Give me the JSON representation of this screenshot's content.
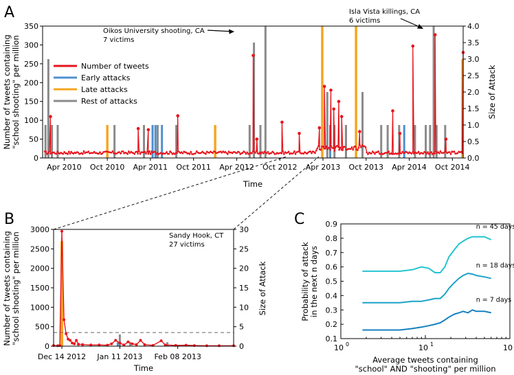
{
  "chart_data": [
    {
      "panel": "A",
      "type": "line",
      "xlabel": "Time",
      "ylabel_left": [
        "Number of tweets containing",
        "\"school shooting\" per million"
      ],
      "ylabel_right": "Size of Attack",
      "ylim_left": [
        0,
        350
      ],
      "ylim_right": [
        0,
        4.0
      ],
      "yticks_left": [
        "0",
        "50",
        "100",
        "150",
        "200",
        "250",
        "300",
        "350"
      ],
      "yticks_right": [
        "0.0",
        "0.5",
        "1.0",
        "1.5",
        "2.0",
        "2.5",
        "3.0",
        "3.5",
        "4.0"
      ],
      "x_ticks": [
        "Apr 2010",
        "Oct 2010",
        "Apr 2011",
        "Oct 2011",
        "Apr 2012",
        "Oct 2012",
        "Apr 2013",
        "Oct 2013",
        "Apr 2014",
        "Oct 2014"
      ],
      "x_range_months": [
        -3,
        55.5
      ],
      "legend": [
        "Number of tweets",
        "Early attacks",
        "Late attacks",
        "Rest of attacks"
      ],
      "colors": {
        "tweets": "#e8141c",
        "early": "#4f8fd0",
        "late": "#f5a623",
        "rest": "#8a8a8a"
      },
      "annotations": [
        {
          "lines": [
            "Oikos University shooting, CA",
            "7 victims"
          ]
        },
        {
          "lines": [
            "Isla Vista killings, CA",
            "6 victims"
          ]
        }
      ],
      "tweet_spikes": [
        {
          "month": -1.9,
          "value": 110
        },
        {
          "month": 10.3,
          "value": 78
        },
        {
          "month": 11.7,
          "value": 75
        },
        {
          "month": 15.8,
          "value": 112
        },
        {
          "month": 26.3,
          "value": 272
        },
        {
          "month": 26.8,
          "value": 50
        },
        {
          "month": 30.3,
          "value": 95
        },
        {
          "month": 32.7,
          "value": 65
        },
        {
          "month": 35.5,
          "value": 80
        },
        {
          "month": 36.2,
          "value": 190
        },
        {
          "month": 37.1,
          "value": 180
        },
        {
          "month": 37.5,
          "value": 130
        },
        {
          "month": 38.2,
          "value": 150
        },
        {
          "month": 38.6,
          "value": 110
        },
        {
          "month": 41.1,
          "value": 70
        },
        {
          "month": 45.7,
          "value": 125
        },
        {
          "month": 46.7,
          "value": 65
        },
        {
          "month": 48.5,
          "value": 297
        },
        {
          "month": 51.6,
          "value": 327
        },
        {
          "month": 53.1,
          "value": 50
        },
        {
          "month": 55.5,
          "value": 280
        }
      ],
      "attacks": [
        {
          "month": -2.6,
          "size": 1.0,
          "kind": "rest"
        },
        {
          "month": -2.2,
          "size": 3.0,
          "kind": "rest"
        },
        {
          "month": -1.7,
          "size": 1.0,
          "kind": "rest"
        },
        {
          "month": -0.9,
          "size": 1.0,
          "kind": "rest"
        },
        {
          "month": 6.0,
          "size": 1.0,
          "kind": "late"
        },
        {
          "month": 7.0,
          "size": 1.0,
          "kind": "rest"
        },
        {
          "month": 11.1,
          "size": 1.0,
          "kind": "rest"
        },
        {
          "month": 12.3,
          "size": 1.0,
          "kind": "early"
        },
        {
          "month": 12.7,
          "size": 1.0,
          "kind": "early"
        },
        {
          "month": 13.0,
          "size": 1.0,
          "kind": "rest"
        },
        {
          "month": 13.6,
          "size": 1.0,
          "kind": "early"
        },
        {
          "month": 15.6,
          "size": 1.0,
          "kind": "rest"
        },
        {
          "month": 21.0,
          "size": 1.0,
          "kind": "late"
        },
        {
          "month": 25.8,
          "size": 1.0,
          "kind": "rest"
        },
        {
          "month": 26.4,
          "size": 3.5,
          "kind": "rest"
        },
        {
          "month": 27.3,
          "size": 1.0,
          "kind": "rest"
        },
        {
          "month": 28.0,
          "size": 4.0,
          "kind": "rest"
        },
        {
          "month": 35.9,
          "size": 4.0,
          "kind": "late"
        },
        {
          "month": 36.6,
          "size": 2.0,
          "kind": "rest"
        },
        {
          "month": 37.0,
          "size": 1.0,
          "kind": "early"
        },
        {
          "month": 37.6,
          "size": 1.0,
          "kind": "rest"
        },
        {
          "month": 39.2,
          "size": 1.0,
          "kind": "rest"
        },
        {
          "month": 40.6,
          "size": 4.0,
          "kind": "late"
        },
        {
          "month": 41.5,
          "size": 2.0,
          "kind": "rest"
        },
        {
          "month": 44.1,
          "size": 1.0,
          "kind": "rest"
        },
        {
          "month": 45.0,
          "size": 1.0,
          "kind": "rest"
        },
        {
          "month": 46.6,
          "size": 1.0,
          "kind": "rest"
        },
        {
          "month": 47.3,
          "size": 1.0,
          "kind": "early"
        },
        {
          "month": 48.8,
          "size": 1.0,
          "kind": "rest"
        },
        {
          "month": 50.3,
          "size": 1.0,
          "kind": "rest"
        },
        {
          "month": 50.9,
          "size": 1.0,
          "kind": "rest"
        },
        {
          "month": 51.4,
          "size": 4.0,
          "kind": "rest"
        },
        {
          "month": 51.8,
          "size": 1.0,
          "kind": "rest"
        },
        {
          "month": 53.0,
          "size": 1.0,
          "kind": "rest"
        },
        {
          "month": 55.4,
          "size": 3.0,
          "kind": "late"
        }
      ]
    },
    {
      "panel": "B",
      "type": "line",
      "xlabel": "Time",
      "ylabel_left": [
        "Number of tweets containing",
        "\"school shooting\" per million"
      ],
      "ylabel_right": "Size of Attack",
      "ylim_left": [
        0,
        3000
      ],
      "ylim_right": [
        0,
        30
      ],
      "yticks_left": [
        "0",
        "500",
        "1000",
        "1500",
        "2000",
        "2500",
        "3000"
      ],
      "yticks_right": [
        "0",
        "5",
        "10",
        "15",
        "20",
        "25",
        "30"
      ],
      "x_ticks": [
        {
          "label": "Dec 14 2012",
          "day": 0
        },
        {
          "label": "Jan 11 2013",
          "day": 28
        },
        {
          "label": "Feb 08 2013",
          "day": 56
        }
      ],
      "x_range_days": [
        -4,
        83
      ],
      "threshold_line": 350,
      "annotation": [
        "Sandy Hook, CT",
        "27 victims"
      ],
      "tweets": [
        {
          "day": -4,
          "value": 15
        },
        {
          "day": -2,
          "value": 10
        },
        {
          "day": -1,
          "value": 15
        },
        {
          "day": 0,
          "value": 2950
        },
        {
          "day": 1,
          "value": 680
        },
        {
          "day": 2,
          "value": 320
        },
        {
          "day": 3,
          "value": 180
        },
        {
          "day": 4,
          "value": 150
        },
        {
          "day": 5,
          "value": 80
        },
        {
          "day": 6,
          "value": 60
        },
        {
          "day": 7,
          "value": 150
        },
        {
          "day": 8,
          "value": 50
        },
        {
          "day": 10,
          "value": 40
        },
        {
          "day": 14,
          "value": 30
        },
        {
          "day": 18,
          "value": 30
        },
        {
          "day": 22,
          "value": 25
        },
        {
          "day": 24,
          "value": 60
        },
        {
          "day": 26,
          "value": 150
        },
        {
          "day": 28,
          "value": 80
        },
        {
          "day": 30,
          "value": 30
        },
        {
          "day": 32,
          "value": 110
        },
        {
          "day": 34,
          "value": 60
        },
        {
          "day": 36,
          "value": 40
        },
        {
          "day": 38,
          "value": 150
        },
        {
          "day": 40,
          "value": 40
        },
        {
          "day": 44,
          "value": 20
        },
        {
          "day": 48,
          "value": 140
        },
        {
          "day": 50,
          "value": 30
        },
        {
          "day": 55,
          "value": 20
        },
        {
          "day": 60,
          "value": 25
        },
        {
          "day": 64,
          "value": 15
        },
        {
          "day": 70,
          "value": 10
        },
        {
          "day": 76,
          "value": 10
        },
        {
          "day": 83,
          "value": 10
        }
      ],
      "attacks": [
        {
          "day": 0,
          "size": 27,
          "kind": "late"
        },
        {
          "day": 28,
          "size": 3,
          "kind": "rest"
        },
        {
          "day": 27,
          "size": 1,
          "kind": "early"
        },
        {
          "day": 33,
          "size": 1,
          "kind": "rest"
        },
        {
          "day": 51,
          "size": 1,
          "kind": "rest"
        }
      ]
    },
    {
      "panel": "C",
      "type": "line",
      "xscale": "log",
      "xlabel": [
        "Average tweets containing",
        "\"school\" AND \"shooting\" per million"
      ],
      "ylabel": [
        "Probability of attack",
        "in the next n days"
      ],
      "xlim": [
        1,
        100
      ],
      "ylim": [
        0.1,
        0.9
      ],
      "xticks": [
        {
          "base": "10",
          "exp": "0"
        },
        {
          "base": "10",
          "exp": "1"
        },
        {
          "base": "10",
          "exp": "2"
        }
      ],
      "yticks": [
        "0.1",
        "0.2",
        "0.3",
        "0.4",
        "0.5",
        "0.6",
        "0.7",
        "0.8",
        "0.9"
      ],
      "series": [
        {
          "name": "n = 45 days",
          "color": "#23c4d0",
          "x": [
            1.8,
            3,
            5,
            7,
            9,
            11,
            13,
            15,
            17,
            19,
            22,
            25,
            28,
            32,
            36,
            40,
            50,
            60
          ],
          "y": [
            0.57,
            0.57,
            0.57,
            0.58,
            0.6,
            0.59,
            0.56,
            0.56,
            0.6,
            0.67,
            0.72,
            0.76,
            0.78,
            0.8,
            0.81,
            0.81,
            0.81,
            0.79
          ]
        },
        {
          "name": "n = 18 days",
          "color": "#1aa2c9",
          "x": [
            1.8,
            3,
            5,
            7,
            9,
            11,
            13,
            15,
            17,
            19,
            22,
            25,
            28,
            32,
            36,
            40,
            50,
            60
          ],
          "y": [
            0.35,
            0.35,
            0.35,
            0.36,
            0.36,
            0.37,
            0.38,
            0.38,
            0.41,
            0.45,
            0.49,
            0.52,
            0.54,
            0.555,
            0.55,
            0.54,
            0.53,
            0.52
          ]
        },
        {
          "name": "n = 7 days",
          "color": "#1380c0",
          "x": [
            1.8,
            3,
            5,
            7,
            9,
            11,
            13,
            15,
            17,
            19,
            22,
            25,
            28,
            32,
            36,
            40,
            50,
            60
          ],
          "y": [
            0.16,
            0.16,
            0.16,
            0.17,
            0.18,
            0.19,
            0.2,
            0.21,
            0.23,
            0.25,
            0.27,
            0.28,
            0.29,
            0.28,
            0.3,
            0.29,
            0.29,
            0.28
          ]
        }
      ]
    }
  ],
  "panel_labels": [
    "A",
    "B",
    "C"
  ]
}
